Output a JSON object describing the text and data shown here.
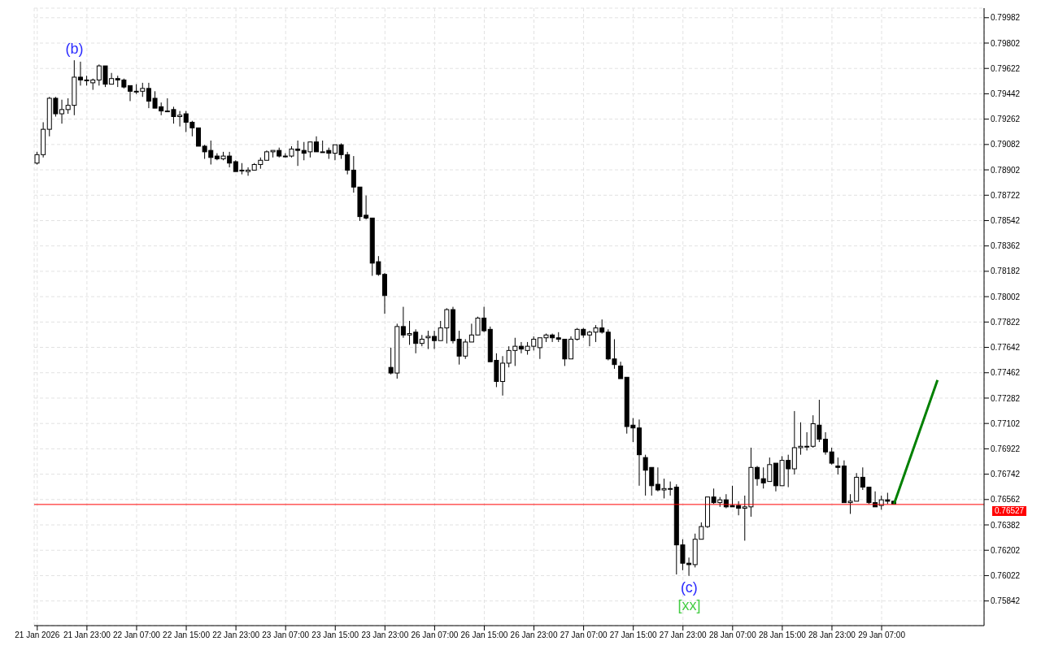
{
  "chart_data": {
    "type": "candlestick",
    "categories": [
      "21 Jan 2026",
      null,
      null,
      null,
      null,
      null,
      null,
      null,
      "21 Jan 23:00",
      null,
      null,
      null,
      null,
      null,
      null,
      null,
      "22 Jan 07:00",
      null,
      null,
      null,
      null,
      null,
      null,
      null,
      "22 Jan 15:00",
      null,
      null,
      null,
      null,
      null,
      null,
      null,
      "22 Jan 23:00",
      null,
      null,
      null,
      null,
      null,
      null,
      null,
      "23 Jan 07:00",
      null,
      null,
      null,
      null,
      null,
      null,
      null,
      "23 Jan 15:00",
      null,
      null,
      null,
      null,
      null,
      null,
      null,
      "23 Jan 23:00",
      null,
      null,
      null,
      null,
      null,
      null,
      null,
      "26 Jan 07:00",
      null,
      null,
      null,
      null,
      null,
      null,
      null,
      "26 Jan 15:00",
      null,
      null,
      null,
      null,
      null,
      null,
      null,
      "26 Jan 23:00",
      null,
      null,
      null,
      null,
      null,
      null,
      null,
      "27 Jan 07:00",
      null,
      null,
      null,
      null,
      null,
      null,
      null,
      "27 Jan 15:00",
      null,
      null,
      null,
      null,
      null,
      null,
      null,
      "27 Jan 23:00",
      null,
      null,
      null,
      null,
      null,
      null,
      null,
      "28 Jan 07:00",
      null,
      null,
      null,
      null,
      null,
      null,
      null,
      "28 Jan 15:00",
      null,
      null,
      null,
      null,
      null,
      null,
      null,
      "28 Jan 23:00",
      null,
      null,
      null,
      null,
      null,
      null,
      null,
      "29 Jan 07:00",
      null,
      null,
      null,
      null,
      null,
      null,
      null,
      null,
      null,
      null,
      null,
      null,
      null,
      null,
      null,
      null
    ],
    "ohlc": [
      [
        0.7895,
        0.7903,
        0.7894,
        0.7901
      ],
      [
        0.7901,
        0.7924,
        0.7899,
        0.7919
      ],
      [
        0.7919,
        0.7942,
        0.7914,
        0.7941
      ],
      [
        0.7941,
        0.7942,
        0.7928,
        0.793
      ],
      [
        0.793,
        0.794,
        0.7923,
        0.7933
      ],
      [
        0.7933,
        0.7941,
        0.793,
        0.7936
      ],
      [
        0.7936,
        0.7968,
        0.7929,
        0.7956
      ],
      [
        0.7956,
        0.7967,
        0.795,
        0.7954
      ],
      [
        0.7954,
        0.7957,
        0.795,
        0.7954
      ],
      [
        0.7952,
        0.7955,
        0.7947,
        0.7954
      ],
      [
        0.7954,
        0.7965,
        0.795,
        0.7964
      ],
      [
        0.7964,
        0.7964,
        0.7949,
        0.7951
      ],
      [
        0.7951,
        0.7959,
        0.7951,
        0.7955
      ],
      [
        0.7955,
        0.7957,
        0.7949,
        0.7954
      ],
      [
        0.7954,
        0.7955,
        0.7948,
        0.7949
      ],
      [
        0.795,
        0.795,
        0.7939,
        0.7946
      ],
      [
        0.7946,
        0.7951,
        0.7944,
        0.7946
      ],
      [
        0.7946,
        0.7952,
        0.7942,
        0.7948
      ],
      [
        0.7948,
        0.7952,
        0.7934,
        0.7939
      ],
      [
        0.7941,
        0.7946,
        0.7934,
        0.7934
      ],
      [
        0.7935,
        0.7938,
        0.7929,
        0.7932
      ],
      [
        0.7932,
        0.7941,
        0.7932,
        0.7932
      ],
      [
        0.7933,
        0.7935,
        0.7923,
        0.7928
      ],
      [
        0.7928,
        0.7932,
        0.7921,
        0.7929
      ],
      [
        0.793,
        0.7932,
        0.7917,
        0.7924
      ],
      [
        0.7924,
        0.7925,
        0.7914,
        0.792
      ],
      [
        0.792,
        0.792,
        0.7907,
        0.7907
      ],
      [
        0.7907,
        0.7908,
        0.7898,
        0.7903
      ],
      [
        0.7904,
        0.7911,
        0.7894,
        0.7899
      ],
      [
        0.79,
        0.7902,
        0.7897,
        0.7898
      ],
      [
        0.7898,
        0.7903,
        0.7897,
        0.79
      ],
      [
        0.79,
        0.7903,
        0.7892,
        0.7895
      ],
      [
        0.7896,
        0.7897,
        0.7889,
        0.7889
      ],
      [
        0.789,
        0.7895,
        0.7887,
        0.789
      ],
      [
        0.7889,
        0.7892,
        0.7886,
        0.789
      ],
      [
        0.789,
        0.7895,
        0.789,
        0.7894
      ],
      [
        0.7894,
        0.7899,
        0.7891,
        0.7897
      ],
      [
        0.7897,
        0.7904,
        0.7897,
        0.7903
      ],
      [
        0.7903,
        0.7904,
        0.7899,
        0.7904
      ],
      [
        0.7904,
        0.7906,
        0.7899,
        0.79
      ],
      [
        0.79,
        0.7902,
        0.7899,
        0.79
      ],
      [
        0.79,
        0.7907,
        0.7899,
        0.7905
      ],
      [
        0.7905,
        0.7911,
        0.7893,
        0.7904
      ],
      [
        0.7904,
        0.791,
        0.7897,
        0.7902
      ],
      [
        0.7903,
        0.791,
        0.7899,
        0.791
      ],
      [
        0.791,
        0.7914,
        0.7903,
        0.7903
      ],
      [
        0.7903,
        0.7911,
        0.7903,
        0.7903
      ],
      [
        0.7904,
        0.7906,
        0.7898,
        0.7902
      ],
      [
        0.7902,
        0.7908,
        0.7897,
        0.7908
      ],
      [
        0.7908,
        0.7909,
        0.7898,
        0.7901
      ],
      [
        0.7901,
        0.7903,
        0.7887,
        0.789
      ],
      [
        0.789,
        0.79,
        0.7874,
        0.7878
      ],
      [
        0.7878,
        0.7878,
        0.7854,
        0.7857
      ],
      [
        0.7858,
        0.7872,
        0.7855,
        0.7856
      ],
      [
        0.7856,
        0.7856,
        0.7815,
        0.7824
      ],
      [
        0.7825,
        0.7829,
        0.7815,
        0.7816
      ],
      [
        0.7816,
        0.7817,
        0.7788,
        0.7801
      ],
      [
        0.775,
        0.7764,
        0.7745,
        0.7746
      ],
      [
        0.7746,
        0.7781,
        0.7742,
        0.7779
      ],
      [
        0.7779,
        0.7793,
        0.7771,
        0.7773
      ],
      [
        0.7773,
        0.7783,
        0.7766,
        0.7774
      ],
      [
        0.7775,
        0.7777,
        0.776,
        0.7767
      ],
      [
        0.7767,
        0.7773,
        0.7765,
        0.777
      ],
      [
        0.7771,
        0.7776,
        0.7763,
        0.7772
      ],
      [
        0.7772,
        0.7776,
        0.7763,
        0.7769
      ],
      [
        0.7769,
        0.7783,
        0.7769,
        0.7778
      ],
      [
        0.7778,
        0.7792,
        0.7767,
        0.7791
      ],
      [
        0.7791,
        0.7793,
        0.7767,
        0.7769
      ],
      [
        0.777,
        0.7776,
        0.7752,
        0.7758
      ],
      [
        0.7758,
        0.777,
        0.7756,
        0.7768
      ],
      [
        0.7768,
        0.7781,
        0.7768,
        0.7773
      ],
      [
        0.7773,
        0.7786,
        0.7773,
        0.7785
      ],
      [
        0.7785,
        0.7793,
        0.7775,
        0.7776
      ],
      [
        0.7777,
        0.7779,
        0.7754,
        0.7754
      ],
      [
        0.7755,
        0.776,
        0.7736,
        0.774
      ],
      [
        0.774,
        0.7758,
        0.773,
        0.7753
      ],
      [
        0.7753,
        0.7765,
        0.775,
        0.7762
      ],
      [
        0.7762,
        0.7771,
        0.7751,
        0.7765
      ],
      [
        0.7765,
        0.7768,
        0.776,
        0.7763
      ],
      [
        0.7762,
        0.7768,
        0.7759,
        0.7765
      ],
      [
        0.7765,
        0.7772,
        0.7762,
        0.777
      ],
      [
        0.7764,
        0.7771,
        0.7756,
        0.7771
      ],
      [
        0.7771,
        0.7774,
        0.7768,
        0.7773
      ],
      [
        0.7773,
        0.7774,
        0.7768,
        0.7771
      ],
      [
        0.7771,
        0.7775,
        0.7768,
        0.777
      ],
      [
        0.777,
        0.777,
        0.7751,
        0.7756
      ],
      [
        0.7756,
        0.7772,
        0.7756,
        0.777
      ],
      [
        0.777,
        0.7778,
        0.7769,
        0.7777
      ],
      [
        0.7777,
        0.7778,
        0.7771,
        0.7773
      ],
      [
        0.7773,
        0.7776,
        0.7765,
        0.7775
      ],
      [
        0.7775,
        0.778,
        0.7768,
        0.7778
      ],
      [
        0.7778,
        0.7784,
        0.7774,
        0.7775
      ],
      [
        0.7775,
        0.7777,
        0.7755,
        0.7756
      ],
      [
        0.7756,
        0.777,
        0.7749,
        0.7752
      ],
      [
        0.7751,
        0.7754,
        0.7742,
        0.7742
      ],
      [
        0.7743,
        0.7743,
        0.7703,
        0.7708
      ],
      [
        0.7709,
        0.7714,
        0.7697,
        0.7707
      ],
      [
        0.7707,
        0.7713,
        0.7666,
        0.7688
      ],
      [
        0.7686,
        0.7688,
        0.7659,
        0.7677
      ],
      [
        0.7679,
        0.7679,
        0.7659,
        0.7666
      ],
      [
        0.7667,
        0.7679,
        0.7662,
        0.7663
      ],
      [
        0.7663,
        0.7671,
        0.7657,
        0.7664
      ],
      [
        0.7664,
        0.7669,
        0.7659,
        0.7664
      ],
      [
        0.7665,
        0.7667,
        0.7603,
        0.7624
      ],
      [
        0.7624,
        0.7628,
        0.7606,
        0.7611
      ],
      [
        0.7611,
        0.7615,
        0.7602,
        0.761
      ],
      [
        0.761,
        0.7632,
        0.7608,
        0.7628
      ],
      [
        0.7628,
        0.764,
        0.7628,
        0.7637
      ],
      [
        0.7637,
        0.7658,
        0.7636,
        0.7658
      ],
      [
        0.7658,
        0.7664,
        0.7653,
        0.7654
      ],
      [
        0.7654,
        0.7658,
        0.7651,
        0.7656
      ],
      [
        0.7656,
        0.766,
        0.765,
        0.7651
      ],
      [
        0.7652,
        0.7666,
        0.7651,
        0.7651
      ],
      [
        0.7652,
        0.7655,
        0.7645,
        0.765
      ],
      [
        0.765,
        0.7659,
        0.7627,
        0.7651
      ],
      [
        0.7651,
        0.7693,
        0.7644,
        0.7679
      ],
      [
        0.7679,
        0.768,
        0.7666,
        0.7671
      ],
      [
        0.7671,
        0.7679,
        0.7664,
        0.7668
      ],
      [
        0.7669,
        0.7686,
        0.7669,
        0.7681
      ],
      [
        0.7682,
        0.7682,
        0.7662,
        0.7666
      ],
      [
        0.7666,
        0.7687,
        0.7666,
        0.7684
      ],
      [
        0.7684,
        0.7688,
        0.7665,
        0.7678
      ],
      [
        0.7678,
        0.7719,
        0.7674,
        0.7693
      ],
      [
        0.7693,
        0.7711,
        0.7688,
        0.7694
      ],
      [
        0.7694,
        0.7704,
        0.7691,
        0.7694
      ],
      [
        0.7694,
        0.7716,
        0.7693,
        0.771
      ],
      [
        0.7709,
        0.7727,
        0.7697,
        0.7699
      ],
      [
        0.7699,
        0.7704,
        0.7688,
        0.769
      ],
      [
        0.769,
        0.7693,
        0.7681,
        0.7682
      ],
      [
        0.768,
        0.7686,
        0.7674,
        0.7679
      ],
      [
        0.768,
        0.7684,
        0.7654,
        0.7654
      ],
      [
        0.7654,
        0.766,
        0.7646,
        0.7655
      ],
      [
        0.7655,
        0.7675,
        0.7655,
        0.7672
      ],
      [
        0.7672,
        0.7679,
        0.7663,
        0.7665
      ],
      [
        0.7665,
        0.7665,
        0.7653,
        0.7654
      ],
      [
        0.7654,
        0.7662,
        0.7651,
        0.7651
      ],
      [
        0.7652,
        0.7659,
        0.7649,
        0.7656
      ],
      [
        0.7656,
        0.7661,
        0.7653,
        0.7655
      ],
      [
        0.7655,
        0.7655,
        0.7653,
        0.7653
      ],
      null,
      null,
      null,
      null,
      null,
      null,
      null,
      null,
      null,
      null,
      null,
      null,
      null,
      null
    ],
    "series": [
      {
        "type": "line",
        "color": "#008000",
        "values": [
          null,
          null,
          null,
          null,
          null,
          null,
          null,
          null,
          null,
          null,
          null,
          null,
          null,
          null,
          null,
          null,
          null,
          null,
          null,
          null,
          null,
          null,
          null,
          null,
          null,
          null,
          null,
          null,
          null,
          null,
          null,
          null,
          null,
          null,
          null,
          null,
          null,
          null,
          null,
          null,
          null,
          null,
          null,
          null,
          null,
          null,
          null,
          null,
          null,
          null,
          null,
          null,
          null,
          null,
          null,
          null,
          null,
          null,
          null,
          null,
          null,
          null,
          null,
          null,
          null,
          null,
          null,
          null,
          null,
          null,
          null,
          null,
          null,
          null,
          null,
          null,
          null,
          null,
          null,
          null,
          null,
          null,
          null,
          null,
          null,
          null,
          null,
          null,
          null,
          null,
          null,
          null,
          null,
          null,
          null,
          null,
          null,
          null,
          null,
          null,
          null,
          null,
          null,
          null,
          null,
          null,
          null,
          null,
          null,
          null,
          null,
          null,
          null,
          null,
          null,
          null,
          null,
          null,
          null,
          null,
          null,
          null,
          null,
          null,
          null,
          null,
          null,
          null,
          null,
          null,
          null,
          null,
          null,
          null,
          null,
          null,
          null,
          null,
          0.7653,
          null,
          null,
          null,
          null,
          null,
          null,
          0.7741,
          null,
          null,
          null,
          null,
          null,
          null,
          null
        ]
      }
    ],
    "ylim": [
      0.75667,
      0.8005
    ],
    "yticks": [
      0.79982,
      0.79802,
      0.79622,
      0.79442,
      0.79262,
      0.79082,
      0.78902,
      0.78722,
      0.78542,
      0.78362,
      0.78182,
      0.78002,
      0.77822,
      0.77642,
      0.77462,
      0.77282,
      0.77102,
      0.76922,
      0.76742,
      0.76562,
      0.76382,
      0.76202,
      0.76022,
      0.75842
    ],
    "grid": true,
    "ref_lines": [
      {
        "axis": "y",
        "value": 0.76527,
        "label": "0.76527",
        "color": "#ff0000"
      }
    ],
    "annotations": [
      {
        "text": "(b)",
        "y": 0.7968
      },
      {
        "text": "(c)",
        "y": 0.7602
      },
      {
        "text": "[xx]",
        "y": 0.7602
      }
    ]
  }
}
